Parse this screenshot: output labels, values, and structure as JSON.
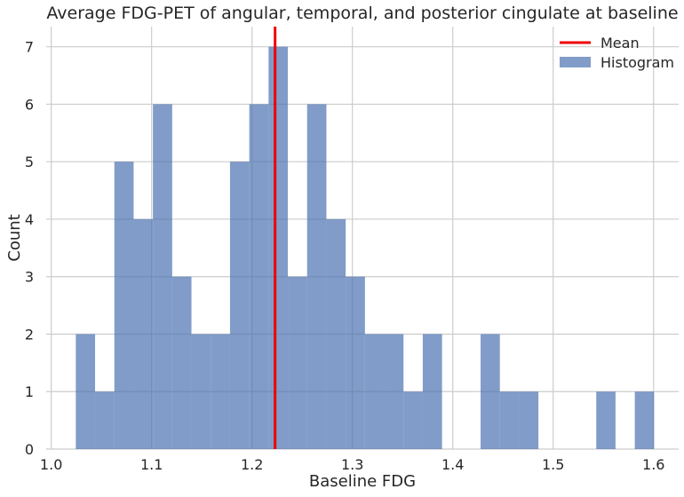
{
  "chart_data": {
    "type": "bar",
    "title": "Average FDG-PET of angular, temporal, and posterior cingulate at baseline",
    "xlabel": "Baseline FDG",
    "ylabel": "Count",
    "xlim": [
      0.995,
      1.625
    ],
    "ylim": [
      0,
      7.35
    ],
    "xticks": [
      1.0,
      1.1,
      1.2,
      1.3,
      1.4,
      1.5,
      1.6
    ],
    "xtick_labels": [
      "1.0",
      "1.1",
      "1.2",
      "1.3",
      "1.4",
      "1.5",
      "1.6"
    ],
    "yticks": [
      0,
      1,
      2,
      3,
      4,
      5,
      6,
      7
    ],
    "ytick_labels": [
      "0",
      "1",
      "2",
      "3",
      "4",
      "5",
      "6",
      "7"
    ],
    "grid": true,
    "legend_placement": "top-right",
    "histogram": {
      "name": "Histogram",
      "color": "#4c72b0",
      "opacity": 0.7,
      "bin_start": 1.0245,
      "bin_width": 0.0192,
      "counts": [
        2,
        1,
        5,
        4,
        6,
        3,
        2,
        2,
        5,
        6,
        7,
        3,
        6,
        4,
        3,
        2,
        2,
        1,
        2,
        0,
        0,
        2,
        1,
        1,
        0,
        0,
        0,
        1,
        0,
        1
      ]
    },
    "mean_line": {
      "name": "Mean",
      "x": 1.223,
      "color": "#ee0000"
    }
  }
}
